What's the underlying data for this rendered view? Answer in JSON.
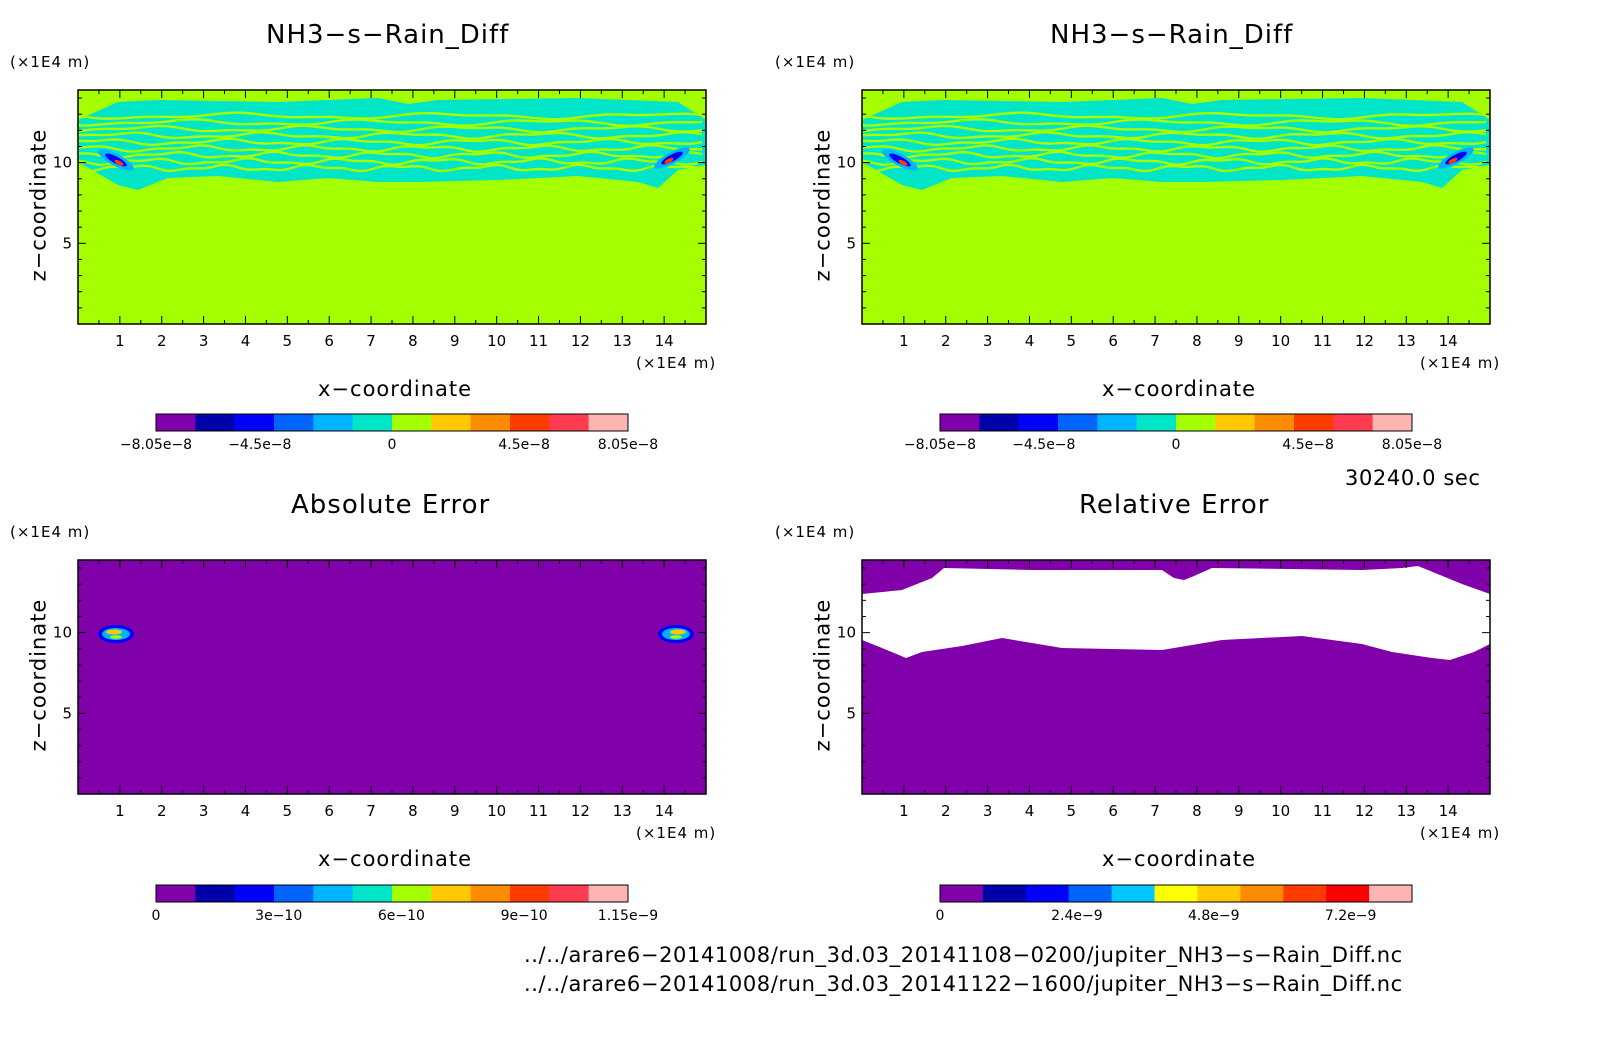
{
  "colors": {
    "bg_field": "#a4ff00",
    "cyan": "#00e5c8",
    "purple": "#8000aa",
    "white": "#ffffff"
  },
  "panels": [
    {
      "title": "NH3−s−Rain_Diff",
      "field": "diff",
      "colorbar": {
        "colors": [
          "#8000aa",
          "#0000a8",
          "#0000ff",
          "#0064ff",
          "#00b4ff",
          "#00e5c8",
          "#a4ff00",
          "#ffc800",
          "#ff8c00",
          "#ff3c00",
          "#ff3c50",
          "#ffb4b4"
        ],
        "labels": [
          "−8.05e−8",
          "−4.5e−8",
          "0",
          "4.5e−8",
          "8.05e−8"
        ],
        "label_pos": [
          0,
          0.22,
          0.5,
          0.78,
          1.0
        ]
      }
    },
    {
      "title": "NH3−s−Rain_Diff",
      "field": "diff",
      "colorbar": {
        "colors": [
          "#8000aa",
          "#0000a8",
          "#0000ff",
          "#0064ff",
          "#00b4ff",
          "#00e5c8",
          "#a4ff00",
          "#ffc800",
          "#ff8c00",
          "#ff3c00",
          "#ff3c50",
          "#ffb4b4"
        ],
        "labels": [
          "−8.05e−8",
          "−4.5e−8",
          "0",
          "4.5e−8",
          "8.05e−8"
        ],
        "label_pos": [
          0,
          0.22,
          0.5,
          0.78,
          1.0
        ]
      }
    },
    {
      "title": "Absolute Error",
      "field": "abs",
      "colorbar": {
        "colors": [
          "#8000aa",
          "#0000a8",
          "#0000ff",
          "#0064ff",
          "#00b4ff",
          "#00e5c8",
          "#a4ff00",
          "#ffc800",
          "#ff8c00",
          "#ff3c00",
          "#ff3c50",
          "#ffb4b4"
        ],
        "labels": [
          "0",
          "3e−10",
          "6e−10",
          "9e−10",
          "1.15e−9"
        ],
        "label_pos": [
          0,
          0.26,
          0.52,
          0.78,
          1.0
        ]
      }
    },
    {
      "title": "Relative Error",
      "field": "rel",
      "colorbar": {
        "colors": [
          "#8000aa",
          "#0000a8",
          "#0000ff",
          "#0064ff",
          "#00c8ff",
          "#ffff00",
          "#ffc800",
          "#ff8c00",
          "#ff3c00",
          "#ff0000",
          "#ffb4b4"
        ],
        "labels": [
          "0",
          "2.4e−9",
          "4.8e−9",
          "7.2e−9"
        ],
        "label_pos": [
          0,
          0.29,
          0.58,
          0.87
        ]
      }
    }
  ],
  "axes": {
    "unit_label": "(×1E4 m)",
    "xlabel": "x−coordinate",
    "ylabel": "z−coordinate",
    "x_range": [
      0,
      15
    ],
    "y_range": [
      0,
      14.5
    ],
    "x_ticks": [
      "1",
      "2",
      "3",
      "4",
      "5",
      "6",
      "7",
      "8",
      "9",
      "10",
      "11",
      "12",
      "13",
      "14"
    ],
    "y_ticks": [
      "5",
      "10"
    ]
  },
  "chart_data": [
    {
      "type": "heatmap",
      "title": "NH3−s−Rain_Diff",
      "xlabel": "x−coordinate",
      "ylabel": "z−coordinate",
      "xlim": [
        0,
        15
      ],
      "ylim": [
        0,
        14.5
      ],
      "colorbar_range": [
        -8.05e-08,
        8.05e-08
      ]
    },
    {
      "type": "heatmap",
      "title": "NH3−s−Rain_Diff",
      "xlabel": "x−coordinate",
      "ylabel": "z−coordinate",
      "xlim": [
        0,
        15
      ],
      "ylim": [
        0,
        14.5
      ],
      "colorbar_range": [
        -8.05e-08,
        8.05e-08
      ]
    },
    {
      "type": "heatmap",
      "title": "Absolute Error",
      "xlabel": "x−coordinate",
      "ylabel": "z−coordinate",
      "xlim": [
        0,
        15
      ],
      "ylim": [
        0,
        14.5
      ],
      "colorbar_range": [
        0,
        1.15e-09
      ]
    },
    {
      "type": "heatmap",
      "title": "Relative Error",
      "xlabel": "x−coordinate",
      "ylabel": "z−coordinate",
      "xlim": [
        0,
        15
      ],
      "ylim": [
        0,
        14.5
      ],
      "colorbar_range": [
        0,
        7.2e-09
      ]
    }
  ],
  "time_label": "30240.0 sec",
  "files": [
    "../../arare6−20141008/run_3d.03_20141108−0200/jupiter_NH3−s−Rain_Diff.nc",
    "../../arare6−20141008/run_3d.03_20141122−1600/jupiter_NH3−s−Rain_Diff.nc"
  ]
}
